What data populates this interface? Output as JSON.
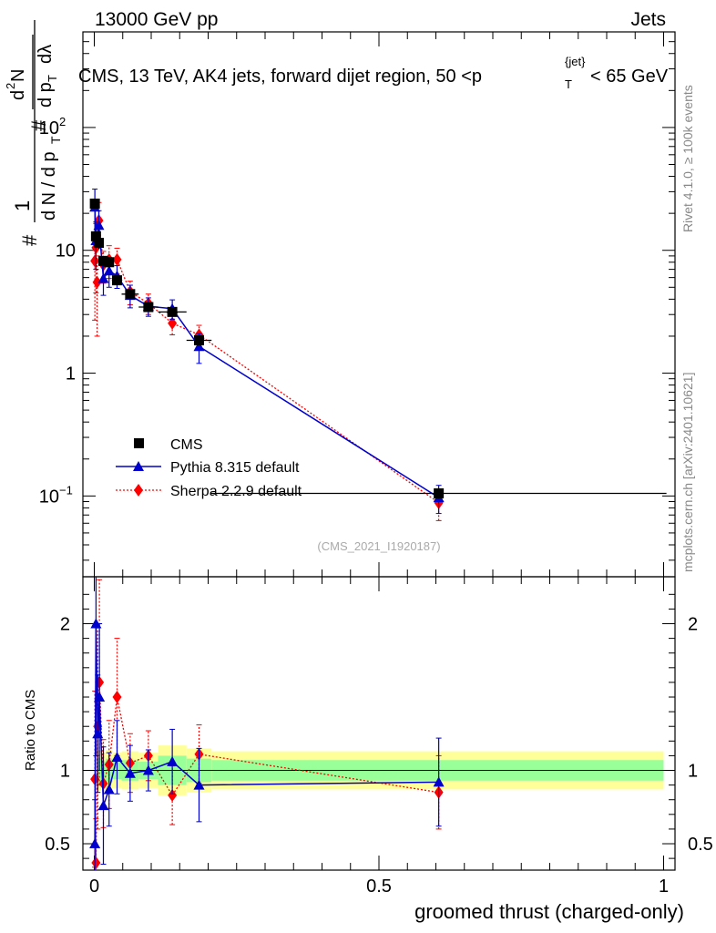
{
  "header": {
    "left": "13000 GeV pp",
    "right": "Jets"
  },
  "plot_title": {
    "main": "CMS, 13 TeV, AK4 jets, forward dijet region, 50 <p",
    "sup": "{jet}",
    "sub": "T",
    "end": "< 65 GeV"
  },
  "side_labels": {
    "rivet": "Rivet 4.1.0, ≥ 100k events",
    "mcplots": "mcplots.cern.ch [arXiv:2401.10621]"
  },
  "watermark": "(CMS_2021_I1920187)",
  "y_label": {
    "hash1": "#",
    "one": "1",
    "dN": "d N / d p",
    "T1": "T",
    "hash2": "#",
    "d2N": "d",
    "two": "2",
    "N": "N",
    "dpT": "d p",
    "T2": "T",
    "dlambda": "dλ"
  },
  "ratio_label": "Ratio to CMS",
  "x_label": "groomed thrust (charged-only)",
  "legend": [
    {
      "label": "CMS"
    },
    {
      "label": "Pythia 8.315 default"
    },
    {
      "label": "Sherpa 2.2.9 default"
    }
  ],
  "colors": {
    "cms": "#000000",
    "pythia": "#0000cc",
    "sherpa": "#ff0000",
    "band_inner": "#99ff99",
    "band_outer": "#ffff99"
  },
  "chart_data": [
    {
      "type": "scatter",
      "panel": "main",
      "scale": "log",
      "xlim": [
        -0.02,
        1.02
      ],
      "ylim": [
        0.022,
        600
      ],
      "yticks": [
        {
          "value": 0.1,
          "base": "10",
          "exp": "−1"
        },
        {
          "value": 1,
          "base": "1",
          "exp": ""
        },
        {
          "value": 10,
          "base": "10",
          "exp": ""
        },
        {
          "value": 100,
          "base": "10",
          "exp": "2"
        }
      ],
      "series": [
        {
          "name": "CMS",
          "x": [
            0.001,
            0.003,
            0.008,
            0.016,
            0.026,
            0.04,
            0.063,
            0.095,
            0.137,
            0.184,
            0.605
          ],
          "y": [
            24,
            13,
            11.5,
            8.2,
            8.0,
            5.7,
            4.4,
            3.45,
            3.15,
            1.85,
            0.105
          ],
          "xerr": [
            0.001,
            0.001,
            0.004,
            0.004,
            0.006,
            0.008,
            0.015,
            0.017,
            0.025,
            0.022,
            0.4
          ],
          "yerr": [
            2,
            1.2,
            1.2,
            0.8,
            0.8,
            0.5,
            0.35,
            0.3,
            0.28,
            0.15,
            0.01
          ]
        },
        {
          "name": "Pythia 8.315 default",
          "x": [
            0.001,
            0.003,
            0.008,
            0.016,
            0.026,
            0.04,
            0.063,
            0.095,
            0.137,
            0.184,
            0.605
          ],
          "y": [
            22.5,
            12,
            16,
            5.9,
            6.8,
            6.2,
            4.3,
            3.5,
            3.35,
            1.65,
            0.097
          ],
          "yerr": [
            9,
            5,
            5,
            1.6,
            1.8,
            1.3,
            0.9,
            0.6,
            0.6,
            0.45,
            0.025
          ]
        },
        {
          "name": "Sherpa 2.2.9 default",
          "x": [
            0.001,
            0.003,
            0.008,
            0.016,
            0.026,
            0.04,
            0.063,
            0.095,
            0.137,
            0.184,
            0.605
          ],
          "y": [
            8.2,
            10.5,
            17.5,
            7.6,
            8.4,
            8.4,
            4.6,
            3.7,
            2.55,
            2.05,
            0.088
          ],
          "yerr": [
            5.5,
            6,
            7,
            2.2,
            2.5,
            2,
            1.0,
            0.7,
            0.5,
            0.4,
            0.025
          ],
          "extra_markers": [
            {
              "x": 0.005,
              "y": 5.5,
              "yerr": 3.5
            }
          ]
        }
      ]
    },
    {
      "type": "scatter",
      "panel": "ratio",
      "ylabel": "Ratio to CMS",
      "xlabel": "groomed thrust (charged-only)",
      "ylim": [
        0.32,
        2.32
      ],
      "yticks": [
        0.5,
        1,
        2
      ],
      "xticks": [
        {
          "value": 0,
          "label": "0"
        },
        {
          "value": 0.5,
          "label": "0.5"
        },
        {
          "value": 1,
          "label": "1"
        }
      ],
      "bands": {
        "x_edges": [
          0.0,
          0.002,
          0.004,
          0.012,
          0.02,
          0.032,
          0.048,
          0.078,
          0.112,
          0.162,
          0.206,
          1.0
        ],
        "inner": [
          0.08,
          0.1,
          0.08,
          0.06,
          0.08,
          0.06,
          0.07,
          0.06,
          0.1,
          0.08,
          0.07
        ],
        "outer": [
          0.14,
          0.17,
          0.14,
          0.12,
          0.14,
          0.12,
          0.13,
          0.12,
          0.17,
          0.15,
          0.13
        ]
      },
      "series": [
        {
          "name": "Pythia 8.315 default",
          "x": [
            0.001,
            0.003,
            0.006,
            0.009,
            0.016,
            0.026,
            0.04,
            0.063,
            0.095,
            0.137,
            0.184,
            0.605
          ],
          "y": [
            0.5,
            2.0,
            1.25,
            1.5,
            0.76,
            0.87,
            1.09,
            0.98,
            1.0,
            1.06,
            0.9,
            0.92
          ],
          "yerr": [
            0.3,
            0.9,
            0.4,
            0.5,
            0.4,
            0.25,
            0.25,
            0.19,
            0.14,
            0.22,
            0.25,
            0.3
          ]
        },
        {
          "name": "Sherpa 2.2.9 default",
          "x": [
            0.001,
            0.003,
            0.006,
            0.009,
            0.016,
            0.026,
            0.04,
            0.063,
            0.095,
            0.137,
            0.184,
            0.605
          ],
          "y": [
            0.94,
            0.37,
            1.3,
            1.6,
            0.91,
            1.04,
            1.5,
            1.05,
            1.1,
            0.83,
            1.11,
            0.85
          ],
          "yerr": [
            0.6,
            0.3,
            0.7,
            0.7,
            0.3,
            0.3,
            0.4,
            0.2,
            0.17,
            0.2,
            0.2,
            0.25
          ]
        }
      ]
    }
  ]
}
